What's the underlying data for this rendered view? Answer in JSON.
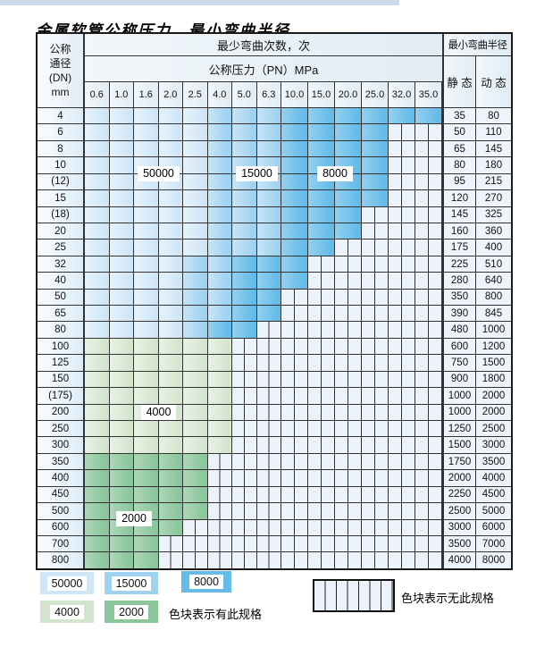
{
  "title": "金属软管公称压力、最小弯曲半径",
  "colors": {
    "blue_50000": "#cfe6f7",
    "blue_15000": "#9fd2f0",
    "blue_8000": "#66bce9",
    "green_4000": "#d3e5cd",
    "green_2000": "#8bc69c",
    "striped_bg": "#edf3fa",
    "grid_line": "#333333",
    "header_bg": "#e2edf5",
    "label_col_bg": "#ddecf8",
    "value_col_bg": "#edf4fb",
    "top_strip": "#ccdbe7"
  },
  "table": {
    "corner_header": [
      "公称",
      "通径",
      "(DN)",
      "mm"
    ],
    "cycles_header": "最少弯曲次数，次",
    "pressure_header": "公称压力（PN）MPa",
    "radius_header": "最小弯曲半径",
    "static_label": "静 态",
    "dynamic_label": "动 态",
    "pressure_columns": [
      "0.6",
      "1.0",
      "1.6",
      "2.0",
      "2.5",
      "4.0",
      "5.0",
      "6.3",
      "10.0",
      "15.0",
      "20.0",
      "25.0",
      "32.0",
      "35.0"
    ],
    "cell_legend": {
      "L": "50000次区域",
      "M": "15000次区域",
      "D": "8000次区域",
      "G4": "4000次区域",
      "G2": "2000次区域",
      "S": "无此规格"
    },
    "rows": [
      {
        "dn": "4",
        "cells": [
          "L",
          "L",
          "L",
          "L",
          "L",
          "M",
          "M",
          "M",
          "D",
          "D",
          "D",
          "D",
          "D",
          "D"
        ],
        "static": "35",
        "dynamic": "80"
      },
      {
        "dn": "6",
        "cells": [
          "L",
          "L",
          "L",
          "L",
          "L",
          "M",
          "M",
          "M",
          "D",
          "D",
          "D",
          "D",
          "S",
          "S"
        ],
        "static": "50",
        "dynamic": "110"
      },
      {
        "dn": "8",
        "cells": [
          "L",
          "L",
          "L",
          "L",
          "L",
          "M",
          "M",
          "M",
          "D",
          "D",
          "D",
          "D",
          "S",
          "S"
        ],
        "static": "65",
        "dynamic": "145"
      },
      {
        "dn": "10",
        "cells": [
          "L",
          "L",
          "L",
          "L",
          "L",
          "M",
          "M",
          "M",
          "D",
          "D",
          "D",
          "D",
          "S",
          "S"
        ],
        "static": "80",
        "dynamic": "180"
      },
      {
        "dn": "(12)",
        "cells": [
          "L",
          "L",
          "L",
          "L",
          "L",
          "M",
          "M",
          "M",
          "D",
          "D",
          "D",
          "D",
          "S",
          "S"
        ],
        "static": "95",
        "dynamic": "215"
      },
      {
        "dn": "15",
        "cells": [
          "L",
          "L",
          "L",
          "L",
          "L",
          "M",
          "M",
          "M",
          "D",
          "D",
          "D",
          "D",
          "S",
          "S"
        ],
        "static": "120",
        "dynamic": "270"
      },
      {
        "dn": "(18)",
        "cells": [
          "L",
          "L",
          "L",
          "L",
          "L",
          "M",
          "M",
          "M",
          "D",
          "D",
          "D",
          "S",
          "S",
          "S"
        ],
        "static": "145",
        "dynamic": "325"
      },
      {
        "dn": "20",
        "cells": [
          "L",
          "L",
          "L",
          "L",
          "L",
          "M",
          "M",
          "M",
          "D",
          "D",
          "D",
          "S",
          "S",
          "S"
        ],
        "static": "160",
        "dynamic": "360"
      },
      {
        "dn": "25",
        "cells": [
          "L",
          "L",
          "L",
          "L",
          "L",
          "M",
          "M",
          "M",
          "D",
          "D",
          "S",
          "S",
          "S",
          "S"
        ],
        "static": "175",
        "dynamic": "400"
      },
      {
        "dn": "32",
        "cells": [
          "L",
          "L",
          "L",
          "L",
          "M",
          "M",
          "D",
          "D",
          "D",
          "S",
          "S",
          "S",
          "S",
          "S"
        ],
        "static": "225",
        "dynamic": "510"
      },
      {
        "dn": "40",
        "cells": [
          "L",
          "L",
          "L",
          "L",
          "M",
          "M",
          "D",
          "D",
          "D",
          "S",
          "S",
          "S",
          "S",
          "S"
        ],
        "static": "280",
        "dynamic": "640"
      },
      {
        "dn": "50",
        "cells": [
          "L",
          "L",
          "L",
          "L",
          "M",
          "M",
          "D",
          "D",
          "S",
          "S",
          "S",
          "S",
          "S",
          "S"
        ],
        "static": "350",
        "dynamic": "800"
      },
      {
        "dn": "65",
        "cells": [
          "L",
          "L",
          "L",
          "L",
          "M",
          "M",
          "D",
          "D",
          "S",
          "S",
          "S",
          "S",
          "S",
          "S"
        ],
        "static": "390",
        "dynamic": "845"
      },
      {
        "dn": "80",
        "cells": [
          "L",
          "L",
          "L",
          "L",
          "M",
          "D",
          "D",
          "S",
          "S",
          "S",
          "S",
          "S",
          "S",
          "S"
        ],
        "static": "480",
        "dynamic": "1000"
      },
      {
        "dn": "100",
        "cells": [
          "G4",
          "G4",
          "G4",
          "G4",
          "G4",
          "G4",
          "S",
          "S",
          "S",
          "S",
          "S",
          "S",
          "S",
          "S"
        ],
        "static": "600",
        "dynamic": "1200"
      },
      {
        "dn": "125",
        "cells": [
          "G4",
          "G4",
          "G4",
          "G4",
          "G4",
          "G4",
          "S",
          "S",
          "S",
          "S",
          "S",
          "S",
          "S",
          "S"
        ],
        "static": "750",
        "dynamic": "1500"
      },
      {
        "dn": "150",
        "cells": [
          "G4",
          "G4",
          "G4",
          "G4",
          "G4",
          "G4",
          "S",
          "S",
          "S",
          "S",
          "S",
          "S",
          "S",
          "S"
        ],
        "static": "900",
        "dynamic": "1800"
      },
      {
        "dn": "(175)",
        "cells": [
          "G4",
          "G4",
          "G4",
          "G4",
          "G4",
          "G4",
          "S",
          "S",
          "S",
          "S",
          "S",
          "S",
          "S",
          "S"
        ],
        "static": "1000",
        "dynamic": "2000"
      },
      {
        "dn": "200",
        "cells": [
          "G4",
          "G4",
          "G4",
          "G4",
          "G4",
          "G4",
          "S",
          "S",
          "S",
          "S",
          "S",
          "S",
          "S",
          "S"
        ],
        "static": "1000",
        "dynamic": "2000"
      },
      {
        "dn": "250",
        "cells": [
          "G4",
          "G4",
          "G4",
          "G4",
          "G4",
          "G4",
          "S",
          "S",
          "S",
          "S",
          "S",
          "S",
          "S",
          "S"
        ],
        "static": "1250",
        "dynamic": "2500"
      },
      {
        "dn": "300",
        "cells": [
          "G4",
          "G4",
          "G4",
          "G4",
          "G4",
          "G4",
          "S",
          "S",
          "S",
          "S",
          "S",
          "S",
          "S",
          "S"
        ],
        "static": "1500",
        "dynamic": "3000"
      },
      {
        "dn": "350",
        "cells": [
          "G2",
          "G2",
          "G2",
          "G2",
          "G2",
          "S",
          "S",
          "S",
          "S",
          "S",
          "S",
          "S",
          "S",
          "S"
        ],
        "static": "1750",
        "dynamic": "3500"
      },
      {
        "dn": "400",
        "cells": [
          "G2",
          "G2",
          "G2",
          "G2",
          "G2",
          "S",
          "S",
          "S",
          "S",
          "S",
          "S",
          "S",
          "S",
          "S"
        ],
        "static": "2000",
        "dynamic": "4000"
      },
      {
        "dn": "450",
        "cells": [
          "G2",
          "G2",
          "G2",
          "G2",
          "G2",
          "S",
          "S",
          "S",
          "S",
          "S",
          "S",
          "S",
          "S",
          "S"
        ],
        "static": "2250",
        "dynamic": "4500"
      },
      {
        "dn": "500",
        "cells": [
          "G2",
          "G2",
          "G2",
          "G2",
          "G2",
          "S",
          "S",
          "S",
          "S",
          "S",
          "S",
          "S",
          "S",
          "S"
        ],
        "static": "2500",
        "dynamic": "5000"
      },
      {
        "dn": "600",
        "cells": [
          "G2",
          "G2",
          "G2",
          "G2",
          "S",
          "S",
          "S",
          "S",
          "S",
          "S",
          "S",
          "S",
          "S",
          "S"
        ],
        "static": "3000",
        "dynamic": "6000"
      },
      {
        "dn": "700",
        "cells": [
          "G2",
          "G2",
          "G2",
          "S",
          "S",
          "S",
          "S",
          "S",
          "S",
          "S",
          "S",
          "S",
          "S",
          "S"
        ],
        "static": "3500",
        "dynamic": "7000"
      },
      {
        "dn": "800",
        "cells": [
          "G2",
          "G2",
          "G2",
          "S",
          "S",
          "S",
          "S",
          "S",
          "S",
          "S",
          "S",
          "S",
          "S",
          "S"
        ],
        "static": "4000",
        "dynamic": "8000"
      }
    ],
    "overlays": [
      {
        "text": "50000",
        "row_start": 3,
        "row_end": 4,
        "col_start": 2,
        "col_end": 3
      },
      {
        "text": "15000",
        "row_start": 3,
        "row_end": 4,
        "col_start": 6,
        "col_end": 7
      },
      {
        "text": "8000",
        "row_start": 3,
        "row_end": 4,
        "col_start": 9,
        "col_end": 10
      },
      {
        "text": "4000",
        "row_start": 18,
        "row_end": 18,
        "col_start": 2,
        "col_end": 3
      },
      {
        "text": "2000",
        "row_start": 24,
        "row_end": 25,
        "col_start": 1,
        "col_end": 2
      }
    ]
  },
  "legend": {
    "items": [
      {
        "label": "50000",
        "type": "L"
      },
      {
        "label": "15000",
        "type": "M"
      },
      {
        "label": "8000",
        "type": "D"
      },
      {
        "label": "4000",
        "type": "G4"
      },
      {
        "label": "2000",
        "type": "G2"
      }
    ],
    "has_spec_text": "色块表示有此规格",
    "no_spec_text": "色块表示无此规格"
  }
}
